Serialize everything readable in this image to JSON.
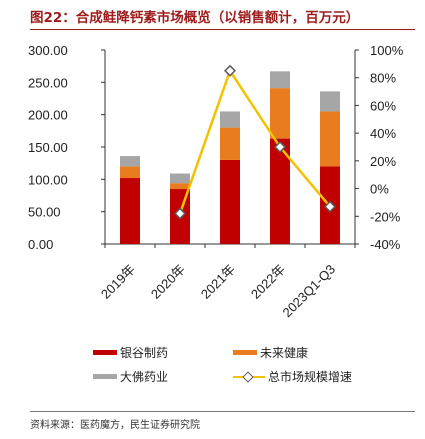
{
  "header": {
    "title": "图22：合成鲑降钙素市场概览（以销售额计，百万元）"
  },
  "footer": {
    "source": "资料来源：医药魔方，民生证券研究院"
  },
  "chart_data": {
    "type": "bar",
    "stacked": true,
    "categories": [
      "2019年",
      "2020年",
      "2021年",
      "2022年",
      "2023Q1-Q3"
    ],
    "series": [
      {
        "name": "银谷制药",
        "color": "#c00000",
        "values": [
          102,
          85,
          130,
          163,
          120
        ]
      },
      {
        "name": "未来健康",
        "color": "#e97c1e",
        "values": [
          18,
          9,
          50,
          78,
          85
        ]
      },
      {
        "name": "大佛药业",
        "color": "#a6a6a6",
        "values": [
          16,
          15,
          25,
          26,
          31
        ]
      }
    ],
    "line_series": {
      "name": "总市场规模增速",
      "color": "#f2c200",
      "axis": "right",
      "values": [
        null,
        -18,
        85,
        30,
        -13
      ]
    },
    "y_left": {
      "ticks": [
        "0.00",
        "50.00",
        "100.00",
        "150.00",
        "200.00",
        "250.00",
        "300.00"
      ],
      "ylim": [
        0,
        300
      ]
    },
    "y_right": {
      "ticks": [
        "-40%",
        "-20%",
        "0%",
        "20%",
        "40%",
        "60%",
        "80%",
        "100%"
      ],
      "ylim": [
        -40,
        100
      ]
    },
    "legend_position": "bottom",
    "grid": false
  }
}
